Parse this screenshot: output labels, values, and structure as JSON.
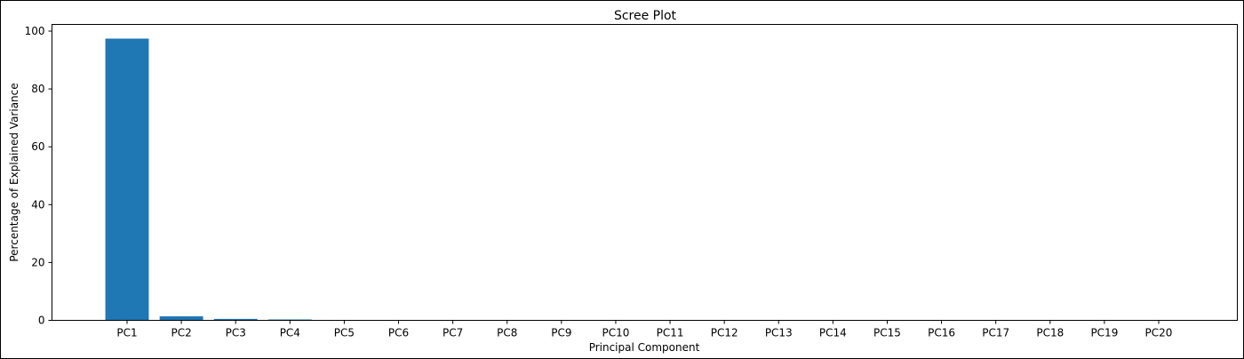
{
  "chart_data": {
    "type": "bar",
    "title": "Scree Plot",
    "xlabel": "Principal Component",
    "ylabel": "Percentage of Explained Variance",
    "categories": [
      "PC1",
      "PC2",
      "PC3",
      "PC4",
      "PC5",
      "PC6",
      "PC7",
      "PC8",
      "PC9",
      "PC10",
      "PC11",
      "PC12",
      "PC13",
      "PC14",
      "PC15",
      "PC16",
      "PC17",
      "PC18",
      "PC19",
      "PC20"
    ],
    "values": [
      97.4,
      1.4,
      0.5,
      0.3,
      0.1,
      0.08,
      0.06,
      0.05,
      0.04,
      0.03,
      0.02,
      0.02,
      0.01,
      0.01,
      0.01,
      0.01,
      0.005,
      0.005,
      0.003,
      0.002
    ],
    "yticks": [
      0,
      20,
      40,
      60,
      80,
      100
    ],
    "ylim": [
      0,
      102.3
    ],
    "grid": false,
    "bar_color": "#1f77b4"
  }
}
